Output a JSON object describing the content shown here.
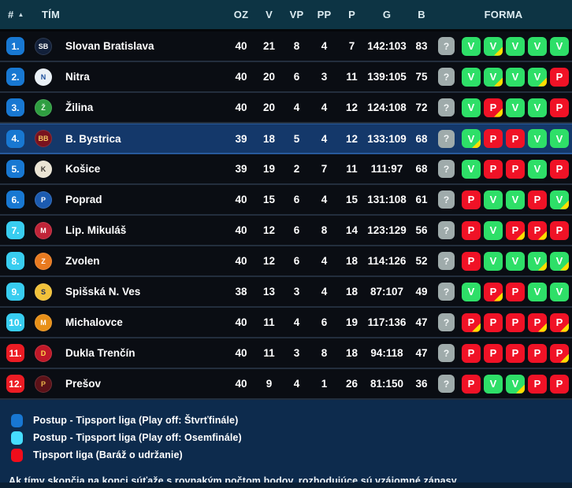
{
  "table": {
    "columns": [
      "#",
      "TÍM",
      "OZ",
      "V",
      "VP",
      "PP",
      "P",
      "G",
      "B",
      "FORMA"
    ],
    "sort_icon": "▲",
    "rows": [
      {
        "rank": "1.",
        "team": "Slovan Bratislava",
        "zone": "quarterfinal",
        "highlighted": false,
        "logo": {
          "name": "slovan-bratislava-logo",
          "initial": "SB",
          "bg": "#12203a",
          "fg": "#ffffff"
        },
        "oz": "40",
        "v": "21",
        "vp": "8",
        "pp": "4",
        "p": "7",
        "g": "142:103",
        "b": "83",
        "forma": [
          {
            "r": "?",
            "ot": false
          },
          {
            "r": "V",
            "ot": false
          },
          {
            "r": "V",
            "ot": true
          },
          {
            "r": "V",
            "ot": false
          },
          {
            "r": "V",
            "ot": false
          },
          {
            "r": "V",
            "ot": false
          }
        ]
      },
      {
        "rank": "2.",
        "team": "Nitra",
        "zone": "quarterfinal",
        "highlighted": false,
        "logo": {
          "name": "nitra-logo",
          "initial": "N",
          "bg": "#e9f0f6",
          "fg": "#1b4e9b"
        },
        "oz": "40",
        "v": "20",
        "vp": "6",
        "pp": "3",
        "p": "11",
        "g": "139:105",
        "b": "75",
        "forma": [
          {
            "r": "?",
            "ot": false
          },
          {
            "r": "V",
            "ot": false
          },
          {
            "r": "V",
            "ot": true
          },
          {
            "r": "V",
            "ot": false
          },
          {
            "r": "V",
            "ot": true
          },
          {
            "r": "P",
            "ot": false
          }
        ]
      },
      {
        "rank": "3.",
        "team": "Žilina",
        "zone": "quarterfinal",
        "highlighted": false,
        "logo": {
          "name": "zilina-logo",
          "initial": "Ž",
          "bg": "#2f9e41",
          "fg": "#eafbe9"
        },
        "oz": "40",
        "v": "20",
        "vp": "4",
        "pp": "4",
        "p": "12",
        "g": "124:108",
        "b": "72",
        "forma": [
          {
            "r": "?",
            "ot": false
          },
          {
            "r": "V",
            "ot": false
          },
          {
            "r": "P",
            "ot": true
          },
          {
            "r": "V",
            "ot": false
          },
          {
            "r": "V",
            "ot": false
          },
          {
            "r": "P",
            "ot": false
          }
        ]
      },
      {
        "rank": "4.",
        "team": "B. Bystrica",
        "zone": "quarterfinal",
        "highlighted": true,
        "logo": {
          "name": "banska-bystrica-logo",
          "initial": "BB",
          "bg": "#78121e",
          "fg": "#f2c560"
        },
        "oz": "39",
        "v": "18",
        "vp": "5",
        "pp": "4",
        "p": "12",
        "g": "133:109",
        "b": "68",
        "forma": [
          {
            "r": "?",
            "ot": false
          },
          {
            "r": "V",
            "ot": true
          },
          {
            "r": "P",
            "ot": false
          },
          {
            "r": "P",
            "ot": false
          },
          {
            "r": "V",
            "ot": false
          },
          {
            "r": "V",
            "ot": false
          }
        ]
      },
      {
        "rank": "5.",
        "team": "Košice",
        "zone": "quarterfinal",
        "highlighted": false,
        "logo": {
          "name": "kosice-logo",
          "initial": "K",
          "bg": "#eae4d4",
          "fg": "#3a3530"
        },
        "oz": "39",
        "v": "19",
        "vp": "2",
        "pp": "7",
        "p": "11",
        "g": "111:97",
        "b": "68",
        "forma": [
          {
            "r": "?",
            "ot": false
          },
          {
            "r": "V",
            "ot": false
          },
          {
            "r": "P",
            "ot": false
          },
          {
            "r": "P",
            "ot": false
          },
          {
            "r": "V",
            "ot": false
          },
          {
            "r": "P",
            "ot": false
          }
        ]
      },
      {
        "rank": "6.",
        "team": "Poprad",
        "zone": "quarterfinal",
        "highlighted": false,
        "logo": {
          "name": "poprad-logo",
          "initial": "P",
          "bg": "#1c5bb0",
          "fg": "#ffffff"
        },
        "oz": "40",
        "v": "15",
        "vp": "6",
        "pp": "4",
        "p": "15",
        "g": "131:108",
        "b": "61",
        "forma": [
          {
            "r": "?",
            "ot": false
          },
          {
            "r": "P",
            "ot": false
          },
          {
            "r": "V",
            "ot": false
          },
          {
            "r": "V",
            "ot": false
          },
          {
            "r": "P",
            "ot": false
          },
          {
            "r": "V",
            "ot": true
          }
        ]
      },
      {
        "rank": "7.",
        "team": "Lip. Mikuláš",
        "zone": "octofinal",
        "highlighted": false,
        "logo": {
          "name": "liptovsky-mikulas-logo",
          "initial": "M",
          "bg": "#c02438",
          "fg": "#ffffff"
        },
        "oz": "40",
        "v": "12",
        "vp": "6",
        "pp": "8",
        "p": "14",
        "g": "123:129",
        "b": "56",
        "forma": [
          {
            "r": "?",
            "ot": false
          },
          {
            "r": "P",
            "ot": false
          },
          {
            "r": "V",
            "ot": false
          },
          {
            "r": "P",
            "ot": true
          },
          {
            "r": "P",
            "ot": true
          },
          {
            "r": "P",
            "ot": false
          }
        ]
      },
      {
        "rank": "8.",
        "team": "Zvolen",
        "zone": "octofinal",
        "highlighted": false,
        "logo": {
          "name": "zvolen-logo",
          "initial": "Z",
          "bg": "#e87a20",
          "fg": "#ffffff"
        },
        "oz": "40",
        "v": "12",
        "vp": "6",
        "pp": "4",
        "p": "18",
        "g": "114:126",
        "b": "52",
        "forma": [
          {
            "r": "?",
            "ot": false
          },
          {
            "r": "P",
            "ot": false
          },
          {
            "r": "V",
            "ot": false
          },
          {
            "r": "V",
            "ot": false
          },
          {
            "r": "V",
            "ot": true
          },
          {
            "r": "V",
            "ot": true
          }
        ]
      },
      {
        "rank": "9.",
        "team": "Spišská N. Ves",
        "zone": "octofinal",
        "highlighted": false,
        "logo": {
          "name": "spisska-nova-ves-logo",
          "initial": "S",
          "bg": "#f2c23a",
          "fg": "#1a2a5a"
        },
        "oz": "38",
        "v": "13",
        "vp": "3",
        "pp": "4",
        "p": "18",
        "g": "87:107",
        "b": "49",
        "forma": [
          {
            "r": "?",
            "ot": false
          },
          {
            "r": "V",
            "ot": false
          },
          {
            "r": "P",
            "ot": true
          },
          {
            "r": "P",
            "ot": false
          },
          {
            "r": "V",
            "ot": false
          },
          {
            "r": "V",
            "ot": false
          }
        ]
      },
      {
        "rank": "10.",
        "team": "Michalovce",
        "zone": "octofinal",
        "highlighted": false,
        "logo": {
          "name": "michalovce-logo",
          "initial": "M",
          "bg": "#e89018",
          "fg": "#ffffff"
        },
        "oz": "40",
        "v": "11",
        "vp": "4",
        "pp": "6",
        "p": "19",
        "g": "117:136",
        "b": "47",
        "forma": [
          {
            "r": "?",
            "ot": false
          },
          {
            "r": "P",
            "ot": true
          },
          {
            "r": "P",
            "ot": false
          },
          {
            "r": "P",
            "ot": false
          },
          {
            "r": "P",
            "ot": true
          },
          {
            "r": "P",
            "ot": true
          }
        ]
      },
      {
        "rank": "11.",
        "team": "Dukla Trenčín",
        "zone": "relegation",
        "highlighted": false,
        "logo": {
          "name": "dukla-trencin-logo",
          "initial": "D",
          "bg": "#c01828",
          "fg": "#ffd84a"
        },
        "oz": "40",
        "v": "11",
        "vp": "3",
        "pp": "8",
        "p": "18",
        "g": "94:118",
        "b": "47",
        "forma": [
          {
            "r": "?",
            "ot": false
          },
          {
            "r": "P",
            "ot": false
          },
          {
            "r": "P",
            "ot": false
          },
          {
            "r": "P",
            "ot": false
          },
          {
            "r": "P",
            "ot": false
          },
          {
            "r": "P",
            "ot": true
          }
        ]
      },
      {
        "rank": "12.",
        "team": "Prešov",
        "zone": "relegation",
        "highlighted": false,
        "logo": {
          "name": "presov-logo",
          "initial": "P",
          "bg": "#5c1218",
          "fg": "#e8b448"
        },
        "oz": "40",
        "v": "9",
        "vp": "4",
        "pp": "1",
        "p": "26",
        "g": "81:150",
        "b": "36",
        "forma": [
          {
            "r": "?",
            "ot": false
          },
          {
            "r": "P",
            "ot": false
          },
          {
            "r": "V",
            "ot": false
          },
          {
            "r": "V",
            "ot": true
          },
          {
            "r": "P",
            "ot": false
          },
          {
            "r": "P",
            "ot": false
          }
        ]
      }
    ]
  },
  "legend": [
    {
      "name": "quarterfinal-swatch",
      "color": "#1877d2",
      "label": "Postup - Tipsport liga (Play off: Štvrťfinále)"
    },
    {
      "name": "octofinal-swatch",
      "color": "#46ddff",
      "label": "Postup - Tipsport liga (Play off: Osemfinále)"
    },
    {
      "name": "relegation-swatch",
      "color": "#f00d1b",
      "label": "Tipsport liga (Baráž o udržanie)"
    }
  ],
  "note": "Ak tímy skončia na konci súťaže s rovnakým počtom bodov, rozhodujúce sú vzájomné zápasy.",
  "colors": {
    "header_bg": "#0d3444",
    "row_bg": "#0a0d13",
    "highlight_row_bg": "#14386a",
    "win_green": "#2edf68",
    "loss_red": "#f01226",
    "overtime_yellow": "#ffdd00",
    "unknown_gray": "#9fabab",
    "zone_quarterfinal": "#1878d2",
    "zone_octofinal": "#38cdf0",
    "zone_relegation": "#ed1c24"
  }
}
